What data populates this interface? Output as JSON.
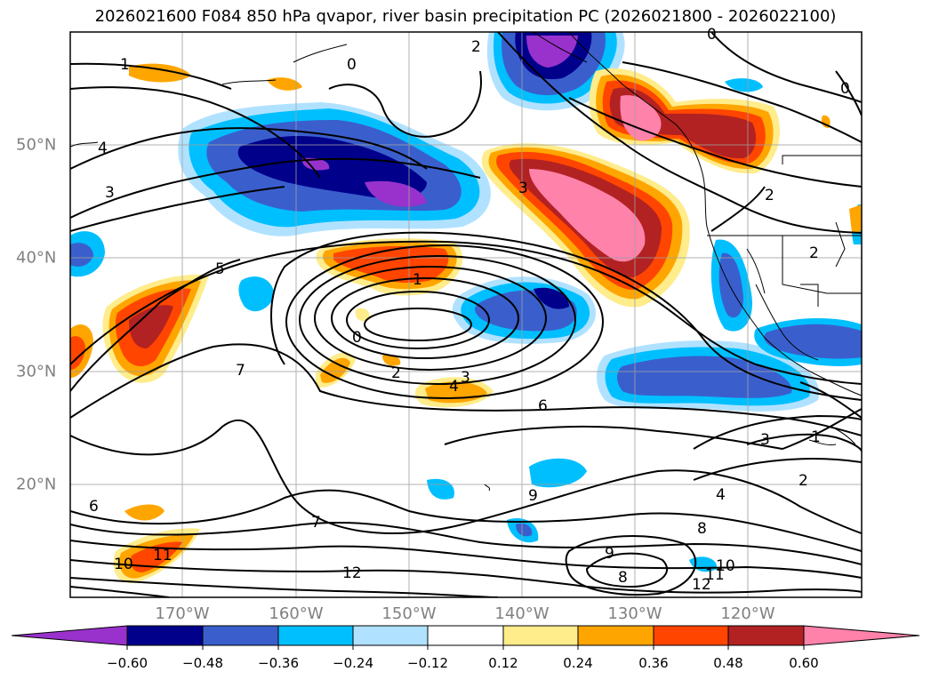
{
  "title": "2026021600 F084 850 hPa qvapor, river basin precipitation PC (2026021800 - 2026022100)",
  "lon_labels": [
    "170°W",
    "160°W",
    "150°W",
    "140°W",
    "130°W",
    "120°W"
  ],
  "lat_labels": [
    "50°N",
    "40°N",
    "30°N",
    "20°N"
  ],
  "colorbar": {
    "ticks": [
      "−0.60",
      "−0.48",
      "−0.36",
      "−0.24",
      "−0.12",
      "0.12",
      "0.24",
      "0.36",
      "0.48",
      "0.60"
    ],
    "colors": [
      "#9932cc",
      "#00008b",
      "#3a5fcd",
      "#00bfff",
      "#b0e2ff",
      "#ffffff",
      "#ffec8b",
      "#ffa500",
      "#ff4500",
      "#b22222",
      "#ff82ab"
    ]
  },
  "contour_labels": [
    "1",
    "0",
    "2",
    "0",
    "0",
    "4",
    "3",
    "3",
    "5",
    "1",
    "0",
    "2",
    "4",
    "3",
    "2",
    "6",
    "7",
    "7",
    "9",
    "4",
    "8",
    "3",
    "2",
    "9",
    "8",
    "11",
    "12",
    "10",
    "12",
    "11",
    "10",
    "6",
    "1",
    "2"
  ]
}
